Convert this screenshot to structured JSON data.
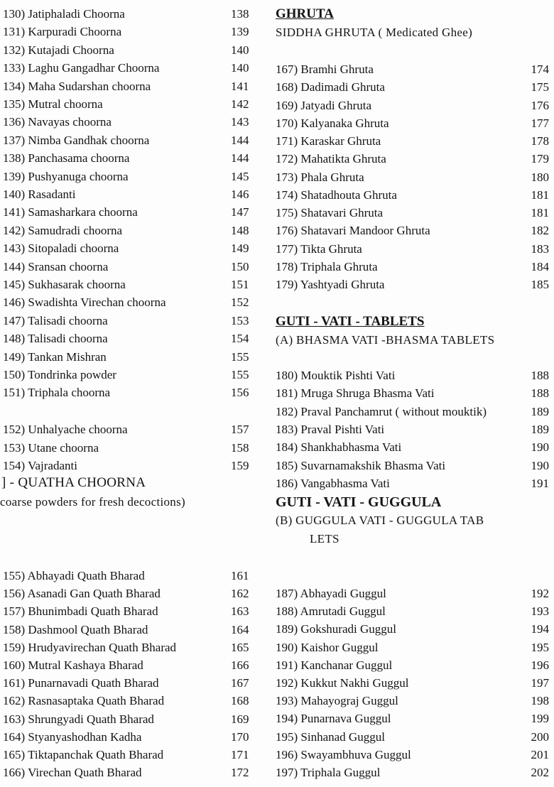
{
  "left": {
    "group1": [
      [
        "130) Jatiphaladi Choorna",
        "138"
      ],
      [
        "131) Karpuradi Choorna",
        "139"
      ],
      [
        "132) Kutajadi Choorna",
        "140"
      ],
      [
        "133) Laghu Gangadhar Choorna",
        "140"
      ],
      [
        "134) Maha Sudarshan choorna",
        "141"
      ],
      [
        "135) Mutral choorna",
        "142"
      ],
      [
        "136) Navayas choorna",
        "143"
      ],
      [
        "137) Nimba Gandhak choorna",
        "144"
      ],
      [
        "138)  Panchasama choorna",
        "144"
      ],
      [
        "139) Pushyanuga choorna",
        "145"
      ],
      [
        "140) Rasadanti",
        "146"
      ],
      [
        "141) Samasharkara choorna",
        "147"
      ],
      [
        "142) Samudradi choorna",
        "148"
      ],
      [
        "143) Sitopaladi choorna",
        "149"
      ],
      [
        "144) Sransan choorna",
        "150"
      ],
      [
        "145) Sukhasarak choorna",
        "151"
      ],
      [
        "146) Swadishta Virechan choorna",
        "152"
      ],
      [
        "147) Talisadi choorna",
        "153"
      ],
      [
        "148) Talisadi choorna",
        "154"
      ],
      [
        "149) Tankan Mishran",
        "155"
      ],
      [
        "150) Tondrinka powder",
        "155"
      ],
      [
        "151) Triphala choorna",
        "156"
      ]
    ],
    "group2": [
      [
        "152) Unhalyache choorna",
        "157"
      ],
      [
        "153) Utane choorna",
        "158"
      ],
      [
        "154) Vajradanti",
        "159"
      ]
    ],
    "quatha_heading": "] - QUATHA CHOORNA",
    "quatha_sub": "coarse  powders for fresh decoctions)",
    "group3": [
      [
        "155) Abhayadi Quath Bharad",
        "161"
      ],
      [
        "156) Asanadi Gan Quath Bharad",
        "162"
      ],
      [
        "157) Bhunimbadi Quath Bharad",
        "163"
      ],
      [
        "158) Dashmool Quath Bharad",
        "164"
      ],
      [
        "159) Hrudyavirechan Quath Bharad",
        "165"
      ],
      [
        "160) Mutral Kashaya Bharad",
        "166"
      ],
      [
        "161) Punarnavadi Quath Bharad",
        "167"
      ],
      [
        "162) Rasnasaptaka Quath Bharad",
        "168"
      ],
      [
        "163) Shrungyadi Quath Bharad",
        "169"
      ],
      [
        "164) Styanyashodhan Kadha",
        "170"
      ],
      [
        "165) Tiktapanchak Quath Bharad",
        "171"
      ],
      [
        "166) Virechan Quath Bharad",
        "172"
      ]
    ]
  },
  "right": {
    "ghruta_heading": "GHRUTA",
    "ghruta_sub": "SIDDHA GHRUTA   ( Medicated Ghee)",
    "ghruta": [
      [
        "167) Bramhi Ghruta",
        "174"
      ],
      [
        "168) Dadimadi Ghruta",
        "175"
      ],
      [
        "169) Jatyadi Ghruta",
        "176"
      ],
      [
        "170) Kalyanaka Ghruta",
        "177"
      ],
      [
        "171)  Karaskar Ghruta",
        "178"
      ],
      [
        "172) Mahatikta Ghruta",
        "179"
      ],
      [
        "173) Phala Ghruta",
        "180"
      ],
      [
        "174) Shatadhouta Ghruta",
        "181"
      ],
      [
        "175) Shatavari Ghruta",
        "181"
      ],
      [
        "176) Shatavari Mandoor Ghruta",
        "182"
      ],
      [
        "177) Tikta Ghruta",
        "183"
      ],
      [
        "178) Triphala Ghruta",
        "184"
      ],
      [
        "179) Yashtyadi Ghruta",
        "185"
      ]
    ],
    "tablets_heading": "GUTI - VATI - TABLETS",
    "tablets_sub": "(A) BHASMA VATI -BHASMA TABLETS",
    "tablets": [
      [
        "180) Mouktik Pishti Vati",
        "188"
      ],
      [
        "181) Mruga Shruga Bhasma Vati",
        "188"
      ],
      [
        "182) Praval Panchamrut ( without mouktik)",
        "189"
      ],
      [
        "183) Praval Pishti Vati",
        "189"
      ],
      [
        "184) Shankhabhasma Vati",
        "190"
      ],
      [
        "185) Suvarnamakshik Bhasma Vati",
        "190"
      ],
      [
        "186) Vangabhasma Vati",
        "191"
      ]
    ],
    "guggula_heading": "GUTI - VATI - GUGGULA",
    "guggula_sub1": "(B)  GUGGULA VATI - GUGGULA TAB",
    "guggula_sub2": "LETS",
    "guggula": [
      [
        "187) Abhayadi Guggul",
        "192"
      ],
      [
        "188) Amrutadi Guggul",
        "193"
      ],
      [
        "189) Gokshuradi Guggul",
        "194"
      ],
      [
        "190) Kaishor Guggul",
        "195"
      ],
      [
        "191) Kanchanar Guggul",
        "196"
      ],
      [
        "192) Kukkut Nakhi Guggul",
        "197"
      ],
      [
        "193) Mahayograj Guggul",
        "198"
      ],
      [
        "194) Punarnava Guggul",
        "199"
      ],
      [
        "195) Sinhanad Guggul",
        "200"
      ],
      [
        "196) Swayambhuva Guggul",
        "201"
      ],
      [
        "197) Triphala Guggul",
        "202"
      ]
    ]
  }
}
